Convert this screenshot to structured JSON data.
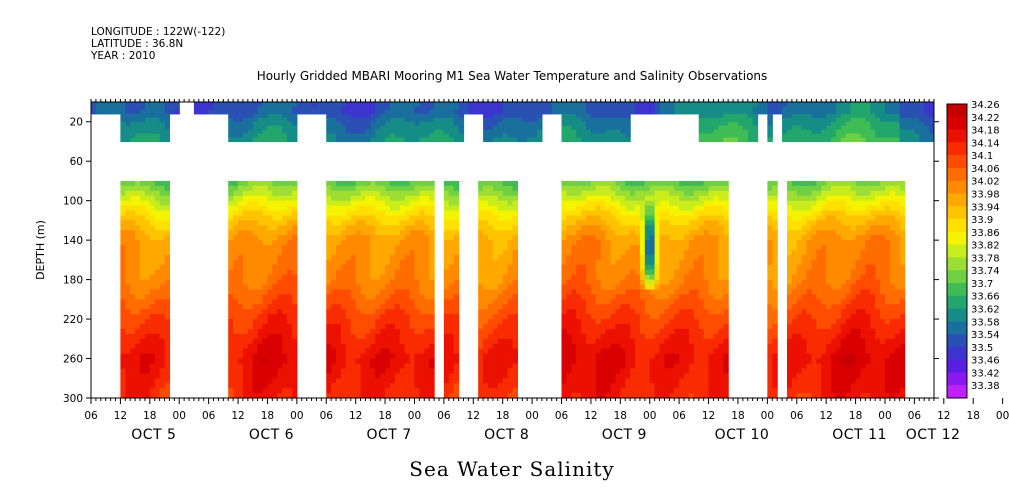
{
  "meta": {
    "longitude": "LONGITUDE : 122W(-122)",
    "latitude": "LATITUDE : 36.8N",
    "year": "YEAR : 2010"
  },
  "chart_data": {
    "type": "heatmap",
    "title": "Hourly Gridded MBARI Mooring M1 Sea Water Temperature and Salinity Observations",
    "variable_label": "Sea Water Salinity",
    "ylabel": "DEPTH (m)",
    "ylim": [
      300,
      0
    ],
    "y_ticks": [
      20,
      60,
      100,
      140,
      180,
      220,
      260,
      300
    ],
    "x_hour_ticks": [
      "06",
      "12",
      "18",
      "00",
      "06",
      "12",
      "18",
      "00",
      "06",
      "12",
      "18",
      "00",
      "06",
      "12",
      "18",
      "00",
      "06",
      "12",
      "18",
      "00",
      "06",
      "12",
      "18",
      "00",
      "06",
      "12",
      "18",
      "00",
      "06",
      "12",
      "18",
      "00"
    ],
    "x_day_labels": [
      "OCT  5",
      "OCT  6",
      "OCT  7",
      "OCT  8",
      "OCT  9",
      "OCT 10",
      "OCT 11",
      "OCT 12"
    ],
    "x_range_hours": [
      0,
      172
    ],
    "colorbar": {
      "levels": [
        34.26,
        34.22,
        34.18,
        34.14,
        34.1,
        34.06,
        34.02,
        33.98,
        33.94,
        33.9,
        33.86,
        33.82,
        33.78,
        33.74,
        33.7,
        33.66,
        33.62,
        33.58,
        33.54,
        33.5,
        33.46,
        33.42,
        33.38
      ],
      "colors": [
        "#c40000",
        "#d80000",
        "#ec1000",
        "#f82c00",
        "#ff4c00",
        "#ff6c00",
        "#ff8a00",
        "#ffa800",
        "#ffc400",
        "#ffe000",
        "#f4f400",
        "#c8ec1c",
        "#9cde34",
        "#70d044",
        "#40bc54",
        "#22a66c",
        "#168c86",
        "#1a709c",
        "#2a50b4",
        "#3c34cc",
        "#5a1ee0",
        "#8a18f0",
        "#c020ff"
      ]
    },
    "depth_profile": [
      {
        "depth": 10,
        "salinity": 33.56
      },
      {
        "depth": 20,
        "salinity": 33.6
      },
      {
        "depth": 80,
        "salinity": 33.74
      },
      {
        "depth": 100,
        "salinity": 33.85
      },
      {
        "depth": 120,
        "salinity": 33.95
      },
      {
        "depth": 140,
        "salinity": 34.02
      },
      {
        "depth": 180,
        "salinity": 34.05
      },
      {
        "depth": 220,
        "salinity": 34.14
      },
      {
        "depth": 260,
        "salinity": 34.21
      },
      {
        "depth": 300,
        "salinity": 34.17
      }
    ],
    "surface_segments_hours": [
      [
        0,
        18.5
      ],
      [
        21,
        172
      ]
    ],
    "upper_band_segments_hours": [
      [
        6,
        16.5
      ],
      [
        28.5,
        42.5
      ],
      [
        48.5,
        76.5
      ],
      [
        80.5,
        92.5
      ],
      [
        96.5,
        110
      ],
      [
        124,
        136.5
      ],
      [
        138.5,
        139.5
      ],
      [
        141.5,
        172
      ]
    ],
    "deep_segments_hours": [
      [
        6,
        16.5
      ],
      [
        28.5,
        42.5
      ],
      [
        48.5,
        70.5
      ],
      [
        72.5,
        75
      ],
      [
        79,
        87
      ],
      [
        96.5,
        130
      ],
      [
        138.5,
        140
      ],
      [
        142.5,
        166.5
      ]
    ],
    "low_salinity_intrusion": {
      "hour": 114,
      "depth_top": 100,
      "depth_bottom": 192,
      "min_salinity": 33.55
    }
  }
}
